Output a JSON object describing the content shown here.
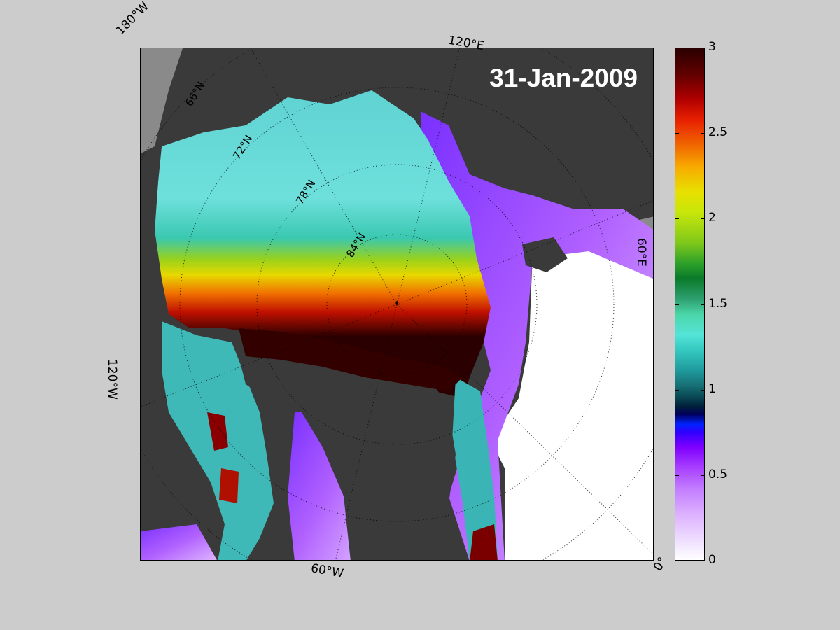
{
  "map": {
    "date": "31-Jan-2009",
    "edge_labels": {
      "lon_180w": "180°W",
      "lon_120e": "120°E",
      "lon_60e": "60°E",
      "lon_120w": "120°W",
      "lon_60w": "60°W",
      "lon_0": "0°"
    },
    "lat_labels": {
      "lat_66": "66°N",
      "lat_72": "72°N",
      "lat_78": "78°N",
      "lat_84": "84°N"
    },
    "colors": {
      "land": "#3a3a3a",
      "land_grey": "#8a8a8a",
      "open_water": "#ffffff",
      "background": "#cccccc"
    }
  },
  "colorbar": {
    "ticks": [
      "0",
      "0.5",
      "1",
      "1.5",
      "2",
      "2.5",
      "3"
    ],
    "range": [
      0,
      3
    ]
  }
}
